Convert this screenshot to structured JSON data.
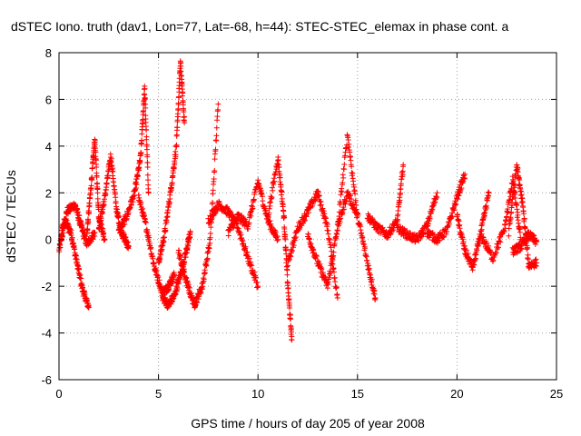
{
  "chart_data": {
    "type": "scatter",
    "title": "dSTEC Iono. truth (dav1, Lon=77, Lat=-68, h=44): STEC-STEC_elemax in phase cont. a",
    "xlabel": "GPS time / hours of day 205 of year 2008",
    "ylabel": "dSTEC  / TECUs",
    "xlim": [
      0,
      25
    ],
    "ylim": [
      -6,
      8
    ],
    "x_ticks": [
      0,
      5,
      10,
      15,
      20,
      25
    ],
    "y_ticks": [
      -6,
      -4,
      -2,
      0,
      2,
      4,
      6,
      8
    ],
    "x_tick_labels": [
      "0",
      "5",
      "10",
      "15",
      "20",
      "25"
    ],
    "y_tick_labels": [
      "-6",
      "-4",
      "-2",
      "0",
      "2",
      "4",
      "6",
      "8"
    ],
    "grid": true,
    "marker": "+",
    "color": "#ff0000",
    "series": [
      {
        "name": "dSTEC",
        "arcs": [
          {
            "t": [
              0.0,
              0.3,
              0.6,
              0.9,
              1.2,
              1.5
            ],
            "y": [
              -0.5,
              0.8,
              0.3,
              -1.0,
              -2.2,
              -2.9
            ]
          },
          {
            "t": [
              0.1,
              0.4,
              0.8,
              1.1,
              1.4,
              1.8
            ],
            "y": [
              0.2,
              1.2,
              1.5,
              0.6,
              -0.2,
              0.3
            ]
          },
          {
            "t": [
              1.4,
              1.6,
              1.8,
              2.0,
              2.3
            ],
            "y": [
              0.2,
              2.2,
              4.3,
              1.0,
              0.0
            ]
          },
          {
            "t": [
              2.0,
              2.3,
              2.6,
              2.9,
              3.2,
              3.5
            ],
            "y": [
              0.5,
              1.8,
              3.6,
              1.2,
              0.2,
              -0.3
            ]
          },
          {
            "t": [
              3.0,
              3.4,
              3.8,
              4.1,
              4.3,
              4.5
            ],
            "y": [
              0.3,
              1.0,
              2.0,
              3.5,
              6.5,
              2.0
            ]
          },
          {
            "t": [
              4.0,
              4.4,
              4.8,
              5.2,
              5.5,
              5.8
            ],
            "y": [
              1.8,
              0.5,
              -1.2,
              -2.3,
              -2.0,
              -1.5
            ]
          },
          {
            "t": [
              5.0,
              5.3,
              5.6,
              5.9,
              6.1,
              6.3
            ],
            "y": [
              -1.0,
              0.2,
              2.0,
              4.0,
              7.6,
              5.0
            ]
          },
          {
            "t": [
              5.2,
              5.5,
              5.8,
              6.1,
              6.4,
              6.6
            ],
            "y": [
              -2.5,
              -2.8,
              -2.4,
              -1.5,
              -0.5,
              0.3
            ]
          },
          {
            "t": [
              6.0,
              6.4,
              6.8,
              7.2,
              7.6,
              8.0
            ],
            "y": [
              -0.5,
              -1.8,
              -2.8,
              -2.0,
              0.0,
              5.8
            ]
          },
          {
            "t": [
              7.5,
              8.0,
              8.5,
              9.0,
              9.5,
              10.0
            ],
            "y": [
              0.8,
              1.5,
              1.2,
              0.5,
              -0.8,
              -2.0
            ]
          },
          {
            "t": [
              8.5,
              9.0,
              9.5,
              10.0,
              10.5,
              11.0
            ],
            "y": [
              0.3,
              1.0,
              0.6,
              2.5,
              0.8,
              0.0
            ]
          },
          {
            "t": [
              10.5,
              11.0,
              11.3,
              11.5,
              11.7
            ],
            "y": [
              1.0,
              3.5,
              1.0,
              -2.0,
              -4.3
            ]
          },
          {
            "t": [
              11.5,
              12.0,
              12.5,
              13.0,
              13.5,
              14.0
            ],
            "y": [
              -1.0,
              0.5,
              1.2,
              2.0,
              0.5,
              -2.5
            ]
          },
          {
            "t": [
              12.5,
              13.0,
              13.5,
              14.0,
              14.5,
              15.0
            ],
            "y": [
              0.2,
              -1.0,
              -2.0,
              0.5,
              4.5,
              1.0
            ]
          },
          {
            "t": [
              14.0,
              14.5,
              15.0,
              15.5,
              15.9
            ],
            "y": [
              0.5,
              2.0,
              1.0,
              -1.0,
              -2.5
            ]
          },
          {
            "t": [
              15.5,
              16.0,
              16.5,
              17.0,
              17.3
            ],
            "y": [
              1.0,
              0.5,
              0.2,
              0.8,
              3.2
            ]
          },
          {
            "t": [
              17.0,
              17.5,
              18.0,
              18.5,
              19.0
            ],
            "y": [
              0.5,
              0.2,
              0.0,
              0.6,
              2.0
            ]
          },
          {
            "t": [
              18.5,
              19.0,
              19.5,
              20.0,
              20.4
            ],
            "y": [
              0.3,
              0.0,
              0.4,
              1.8,
              2.8
            ]
          },
          {
            "t": [
              20.0,
              20.4,
              20.8,
              21.2,
              21.6
            ],
            "y": [
              1.0,
              -0.5,
              -1.2,
              0.3,
              2.0
            ]
          },
          {
            "t": [
              21.2,
              21.8,
              22.4,
              22.8,
              23.2
            ],
            "y": [
              0.2,
              -0.8,
              0.5,
              2.6,
              0.0
            ]
          },
          {
            "t": [
              22.6,
              23.0,
              23.3,
              23.6,
              24.0
            ],
            "y": [
              0.3,
              3.2,
              1.5,
              -1.1,
              -1.0
            ]
          },
          {
            "t": [
              22.8,
              23.2,
              23.6,
              24.0
            ],
            "y": [
              -0.5,
              -0.3,
              0.2,
              -0.1
            ]
          }
        ]
      }
    ]
  }
}
